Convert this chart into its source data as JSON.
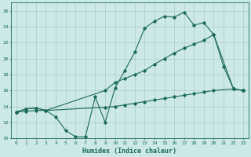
{
  "bg_color": "#cce8e8",
  "grid_color": "#aacccc",
  "line_color": "#1a6b5a",
  "line_width": 0.8,
  "marker": "D",
  "marker_size": 1.8,
  "xlabel": "Humidex (Indice chaleur)",
  "xlabel_fontsize": 6,
  "tick_fontsize": 4.5,
  "xlim": [
    -0.5,
    23.5
  ],
  "ylim": [
    10,
    27
  ],
  "yticks": [
    10,
    12,
    14,
    16,
    18,
    20,
    22,
    24,
    26
  ],
  "xticks": [
    0,
    1,
    2,
    3,
    4,
    5,
    6,
    7,
    8,
    9,
    10,
    11,
    12,
    13,
    14,
    15,
    16,
    17,
    18,
    19,
    20,
    21,
    22,
    23
  ],
  "line1_x": [
    0,
    1,
    2,
    3,
    4,
    5,
    6,
    7,
    8,
    9,
    10,
    11,
    12,
    13,
    14,
    15,
    16,
    17,
    18,
    19,
    20,
    21,
    22,
    23
  ],
  "line1_y": [
    13.3,
    13.7,
    13.8,
    13.5,
    12.7,
    11.0,
    10.2,
    10.2,
    15.2,
    12.0,
    16.3,
    18.5,
    20.8,
    23.8,
    24.7,
    25.3,
    25.2,
    25.8,
    24.2,
    24.5,
    23.0,
    19.0,
    16.2,
    16.0
  ],
  "line2_x": [
    0,
    1,
    2,
    3,
    9,
    10,
    11,
    12,
    13,
    14,
    15,
    16,
    17,
    18,
    19,
    20,
    22,
    23
  ],
  "line2_y": [
    13.3,
    13.7,
    13.8,
    13.5,
    16.0,
    17.0,
    17.5,
    18.0,
    18.5,
    19.3,
    20.0,
    20.7,
    21.3,
    21.8,
    22.3,
    23.0,
    16.2,
    16.0
  ],
  "line3_x": [
    0,
    1,
    2,
    3,
    9,
    10,
    11,
    12,
    13,
    14,
    15,
    16,
    17,
    18,
    19,
    20,
    22,
    23
  ],
  "line3_y": [
    13.3,
    13.4,
    13.5,
    13.5,
    13.9,
    14.0,
    14.2,
    14.4,
    14.6,
    14.8,
    15.0,
    15.2,
    15.4,
    15.6,
    15.8,
    16.0,
    16.2,
    16.0
  ]
}
